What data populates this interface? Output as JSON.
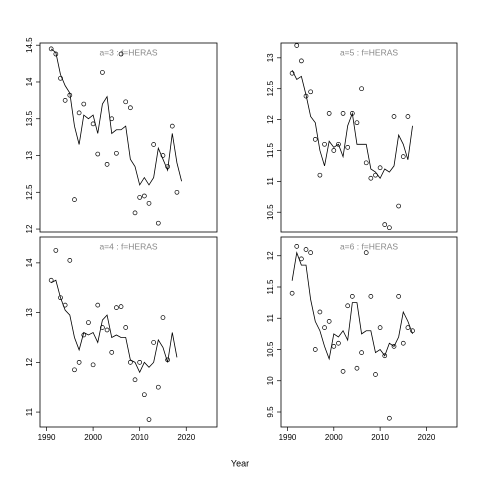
{
  "xlabel": "Year",
  "chart_data": [
    {
      "type": "scatter",
      "title": "a=3  :  f=HERAS",
      "x": [
        1991,
        1992,
        1993,
        1994,
        1995,
        1996,
        1997,
        1998,
        1999,
        2000,
        2001,
        2002,
        2003,
        2004,
        2005,
        2006,
        2007,
        2008,
        2009,
        2010,
        2011,
        2012,
        2013,
        2014,
        2015,
        2016,
        2017,
        2018,
        2019
      ],
      "series": [
        {
          "kind": "points",
          "color": "#000000",
          "values": [
            14.45,
            14.38,
            14.05,
            13.75,
            13.82,
            12.4,
            13.58,
            13.7,
            null,
            13.43,
            13.02,
            14.13,
            12.88,
            13.5,
            13.03,
            14.38,
            13.73,
            13.65,
            12.22,
            12.43,
            12.45,
            12.35,
            13.15,
            12.08,
            13.0,
            12.85,
            13.4,
            12.5,
            null
          ]
        },
        {
          "kind": "line",
          "color": "#000000",
          "values": [
            14.45,
            14.4,
            14.1,
            13.95,
            13.85,
            13.4,
            13.15,
            13.55,
            13.5,
            13.55,
            13.3,
            13.7,
            13.8,
            13.3,
            13.35,
            13.35,
            13.4,
            12.95,
            12.85,
            12.6,
            12.7,
            12.6,
            12.7,
            13.1,
            12.95,
            12.8,
            13.3,
            12.9,
            12.65
          ]
        }
      ],
      "xlim": [
        1988.6,
        2026.6
      ],
      "ylim": [
        11.96,
        14.53
      ],
      "yticks": [
        12.0,
        12.5,
        13.0,
        13.5,
        14.0,
        14.5
      ]
    },
    {
      "type": "scatter",
      "title": "a=5  :  f=HERAS",
      "x": [
        1991,
        1992,
        1993,
        1994,
        1995,
        1996,
        1997,
        1998,
        1999,
        2000,
        2001,
        2002,
        2003,
        2004,
        2005,
        2006,
        2007,
        2008,
        2009,
        2010,
        2011,
        2012,
        2013,
        2014,
        2015,
        2016,
        2017,
        2018,
        2019
      ],
      "series": [
        {
          "kind": "points",
          "color": "#000000",
          "values": [
            12.75,
            13.2,
            12.95,
            12.38,
            12.45,
            11.68,
            11.1,
            11.6,
            12.1,
            11.5,
            11.6,
            12.1,
            11.55,
            12.1,
            11.95,
            12.5,
            11.3,
            11.05,
            11.1,
            11.22,
            10.3,
            10.25,
            12.05,
            10.6,
            11.4,
            12.05,
            null,
            null,
            null
          ]
        },
        {
          "kind": "line",
          "color": "#000000",
          "values": [
            12.8,
            12.65,
            12.7,
            12.4,
            12.05,
            11.95,
            11.5,
            11.25,
            11.65,
            11.55,
            11.6,
            11.4,
            11.9,
            12.1,
            11.6,
            11.6,
            11.6,
            11.2,
            11.15,
            11.05,
            11.2,
            11.15,
            11.25,
            11.75,
            11.6,
            11.35,
            11.9,
            null,
            null
          ]
        }
      ],
      "xlim": [
        1988.6,
        2026.6
      ],
      "ylim": [
        10.18,
        13.24
      ],
      "yticks": [
        10.5,
        11.0,
        11.5,
        12.0,
        12.5,
        13.0
      ]
    },
    {
      "type": "scatter",
      "title": "a=4  :  f=HERAS",
      "x": [
        1991,
        1992,
        1993,
        1994,
        1995,
        1996,
        1997,
        1998,
        1999,
        2000,
        2001,
        2002,
        2003,
        2004,
        2005,
        2006,
        2007,
        2008,
        2009,
        2010,
        2011,
        2012,
        2013,
        2014,
        2015,
        2016,
        2017,
        2018,
        2019
      ],
      "series": [
        {
          "kind": "points",
          "color": "#000000",
          "values": [
            13.65,
            14.25,
            13.3,
            13.15,
            14.05,
            11.85,
            12.0,
            12.55,
            12.8,
            11.95,
            13.15,
            12.7,
            12.65,
            12.2,
            13.1,
            13.12,
            12.7,
            12.0,
            11.65,
            12.0,
            11.35,
            10.85,
            12.4,
            11.5,
            12.9,
            12.05,
            null,
            null,
            null
          ]
        },
        {
          "kind": "line",
          "color": "#000000",
          "values": [
            13.6,
            13.65,
            13.3,
            13.05,
            12.95,
            12.5,
            12.25,
            12.6,
            12.55,
            12.6,
            12.4,
            12.85,
            12.95,
            12.5,
            12.55,
            12.5,
            12.5,
            12.05,
            12.0,
            11.8,
            12.0,
            11.9,
            12.0,
            12.45,
            12.3,
            12.0,
            12.6,
            12.1,
            null
          ]
        }
      ],
      "xlim": [
        1988.6,
        2026.6
      ],
      "ylim": [
        10.7,
        14.52
      ],
      "xticks": [
        1990,
        2000,
        2010,
        2020
      ],
      "yticks": [
        11.0,
        12.0,
        13.0,
        14.0
      ]
    },
    {
      "type": "scatter",
      "title": "a=6  :  f=HERAS",
      "x": [
        1991,
        1992,
        1993,
        1994,
        1995,
        1996,
        1997,
        1998,
        1999,
        2000,
        2001,
        2002,
        2003,
        2004,
        2005,
        2006,
        2007,
        2008,
        2009,
        2010,
        2011,
        2012,
        2013,
        2014,
        2015,
        2016,
        2017,
        2018,
        2019
      ],
      "series": [
        {
          "kind": "points",
          "color": "#000000",
          "values": [
            11.4,
            12.15,
            11.95,
            12.1,
            12.05,
            10.5,
            11.1,
            10.85,
            10.95,
            10.55,
            10.6,
            10.15,
            11.2,
            11.35,
            10.2,
            10.45,
            12.05,
            11.35,
            10.1,
            10.85,
            10.4,
            9.4,
            10.55,
            11.35,
            10.6,
            10.85,
            10.8,
            null,
            null
          ]
        },
        {
          "kind": "line",
          "color": "#000000",
          "values": [
            11.6,
            12.05,
            11.85,
            11.85,
            11.3,
            10.95,
            10.8,
            10.55,
            10.35,
            10.75,
            10.7,
            10.8,
            10.65,
            11.25,
            11.25,
            10.75,
            10.8,
            10.8,
            10.45,
            10.5,
            10.4,
            10.6,
            10.55,
            10.7,
            11.1,
            10.95,
            10.75,
            null,
            null
          ]
        }
      ],
      "xlim": [
        1988.6,
        2026.6
      ],
      "ylim": [
        9.26,
        12.3
      ],
      "xticks": [
        1990,
        2000,
        2010,
        2020
      ],
      "yticks": [
        9.5,
        10.0,
        10.5,
        11.0,
        11.5,
        12.0
      ]
    }
  ]
}
